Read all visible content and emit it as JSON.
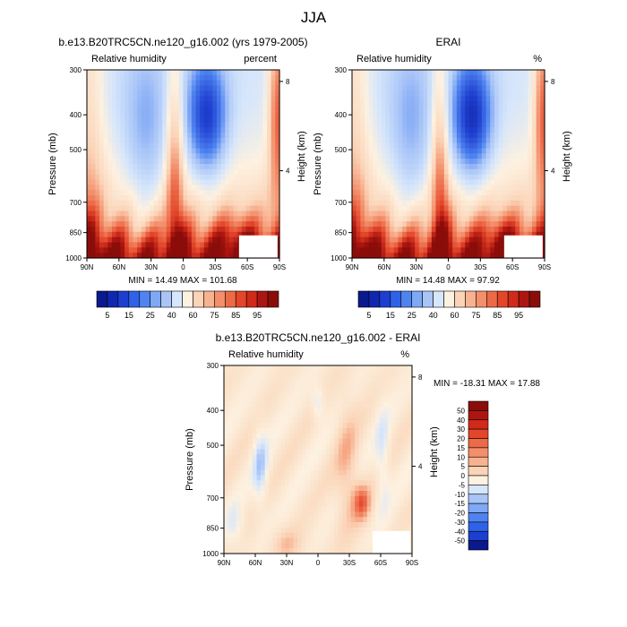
{
  "main_title": "JJA",
  "chart_data": [
    {
      "type": "heatmap",
      "id": "model",
      "title": "b.e13.B20TRC5CN.ne120_g16.002 (yrs 1979-2005)",
      "left_label": "Relative humidity",
      "right_label": "percent",
      "ylabel": "Pressure (mb)",
      "ylabel_right": "Height (km)",
      "yticks": [
        300,
        400,
        500,
        700,
        850,
        1000
      ],
      "ylim": [
        1000,
        300
      ],
      "yticks_right": [
        "8",
        "4"
      ],
      "xticks": [
        "90N",
        "60N",
        "30N",
        "0",
        "30S",
        "60S",
        "90S"
      ],
      "stats": "MIN =  14.49   MAX = 101.68",
      "colorbar_labels": [
        "5",
        "15",
        "25",
        "40",
        "60",
        "75",
        "85",
        "95"
      ],
      "colorbar_colors": [
        "#0a1a8c",
        "#1027b0",
        "#1d3fd0",
        "#2f62e8",
        "#4f84f0",
        "#7fa8f5",
        "#a9c5f8",
        "#d6e6fb",
        "#fdf1e0",
        "#fbd4b8",
        "#f7b290",
        "#f38f6a",
        "#ec6a45",
        "#e4462a",
        "#d02a1a",
        "#ad1610",
        "#8a0d0a"
      ]
    },
    {
      "type": "heatmap",
      "id": "erai",
      "title": "ERAI",
      "left_label": "Relative humidity",
      "right_label": "%",
      "ylabel": "Pressure (mb)",
      "ylabel_right": "Height (km)",
      "yticks": [
        300,
        400,
        500,
        700,
        850,
        1000
      ],
      "ylim": [
        1000,
        300
      ],
      "yticks_right": [
        "8",
        "4"
      ],
      "xticks": [
        "90N",
        "60N",
        "30N",
        "0",
        "30S",
        "60S",
        "90S"
      ],
      "stats": "MIN =  14.48   MAX =  97.92",
      "colorbar_labels": [
        "5",
        "15",
        "25",
        "40",
        "60",
        "75",
        "85",
        "95"
      ],
      "colorbar_colors": [
        "#0a1a8c",
        "#1027b0",
        "#1d3fd0",
        "#2f62e8",
        "#4f84f0",
        "#7fa8f5",
        "#a9c5f8",
        "#d6e6fb",
        "#fdf1e0",
        "#fbd4b8",
        "#f7b290",
        "#f38f6a",
        "#ec6a45",
        "#e4462a",
        "#d02a1a",
        "#ad1610",
        "#8a0d0a"
      ]
    },
    {
      "type": "heatmap",
      "id": "diff",
      "title": "b.e13.B20TRC5CN.ne120_g16.002 - ERAI",
      "left_label": "Relative humidity",
      "right_label": "%",
      "ylabel": "Pressure (mb)",
      "ylabel_right": "Height (km)",
      "yticks": [
        300,
        400,
        500,
        700,
        850,
        1000
      ],
      "ylim": [
        1000,
        300
      ],
      "yticks_right": [
        "8",
        "4"
      ],
      "xticks": [
        "90N",
        "60N",
        "30N",
        "0",
        "30S",
        "60S",
        "90S"
      ],
      "stats": "MIN = -18.31   MAX =  17.88",
      "colorbar_labels": [
        "50",
        "40",
        "30",
        "20",
        "15",
        "10",
        "5",
        "0",
        "-5",
        "-10",
        "-15",
        "-20",
        "-30",
        "-40",
        "-50"
      ],
      "colorbar_colors": [
        "#8a0d0a",
        "#ad1610",
        "#d02a1a",
        "#e4462a",
        "#ec6a45",
        "#f38f6a",
        "#f7b290",
        "#fbd4b8",
        "#fdf1e0",
        "#d6e6fb",
        "#a9c5f8",
        "#7fa8f5",
        "#4f84f0",
        "#2f62e8",
        "#1d3fd0",
        "#0a1a8c"
      ]
    }
  ]
}
